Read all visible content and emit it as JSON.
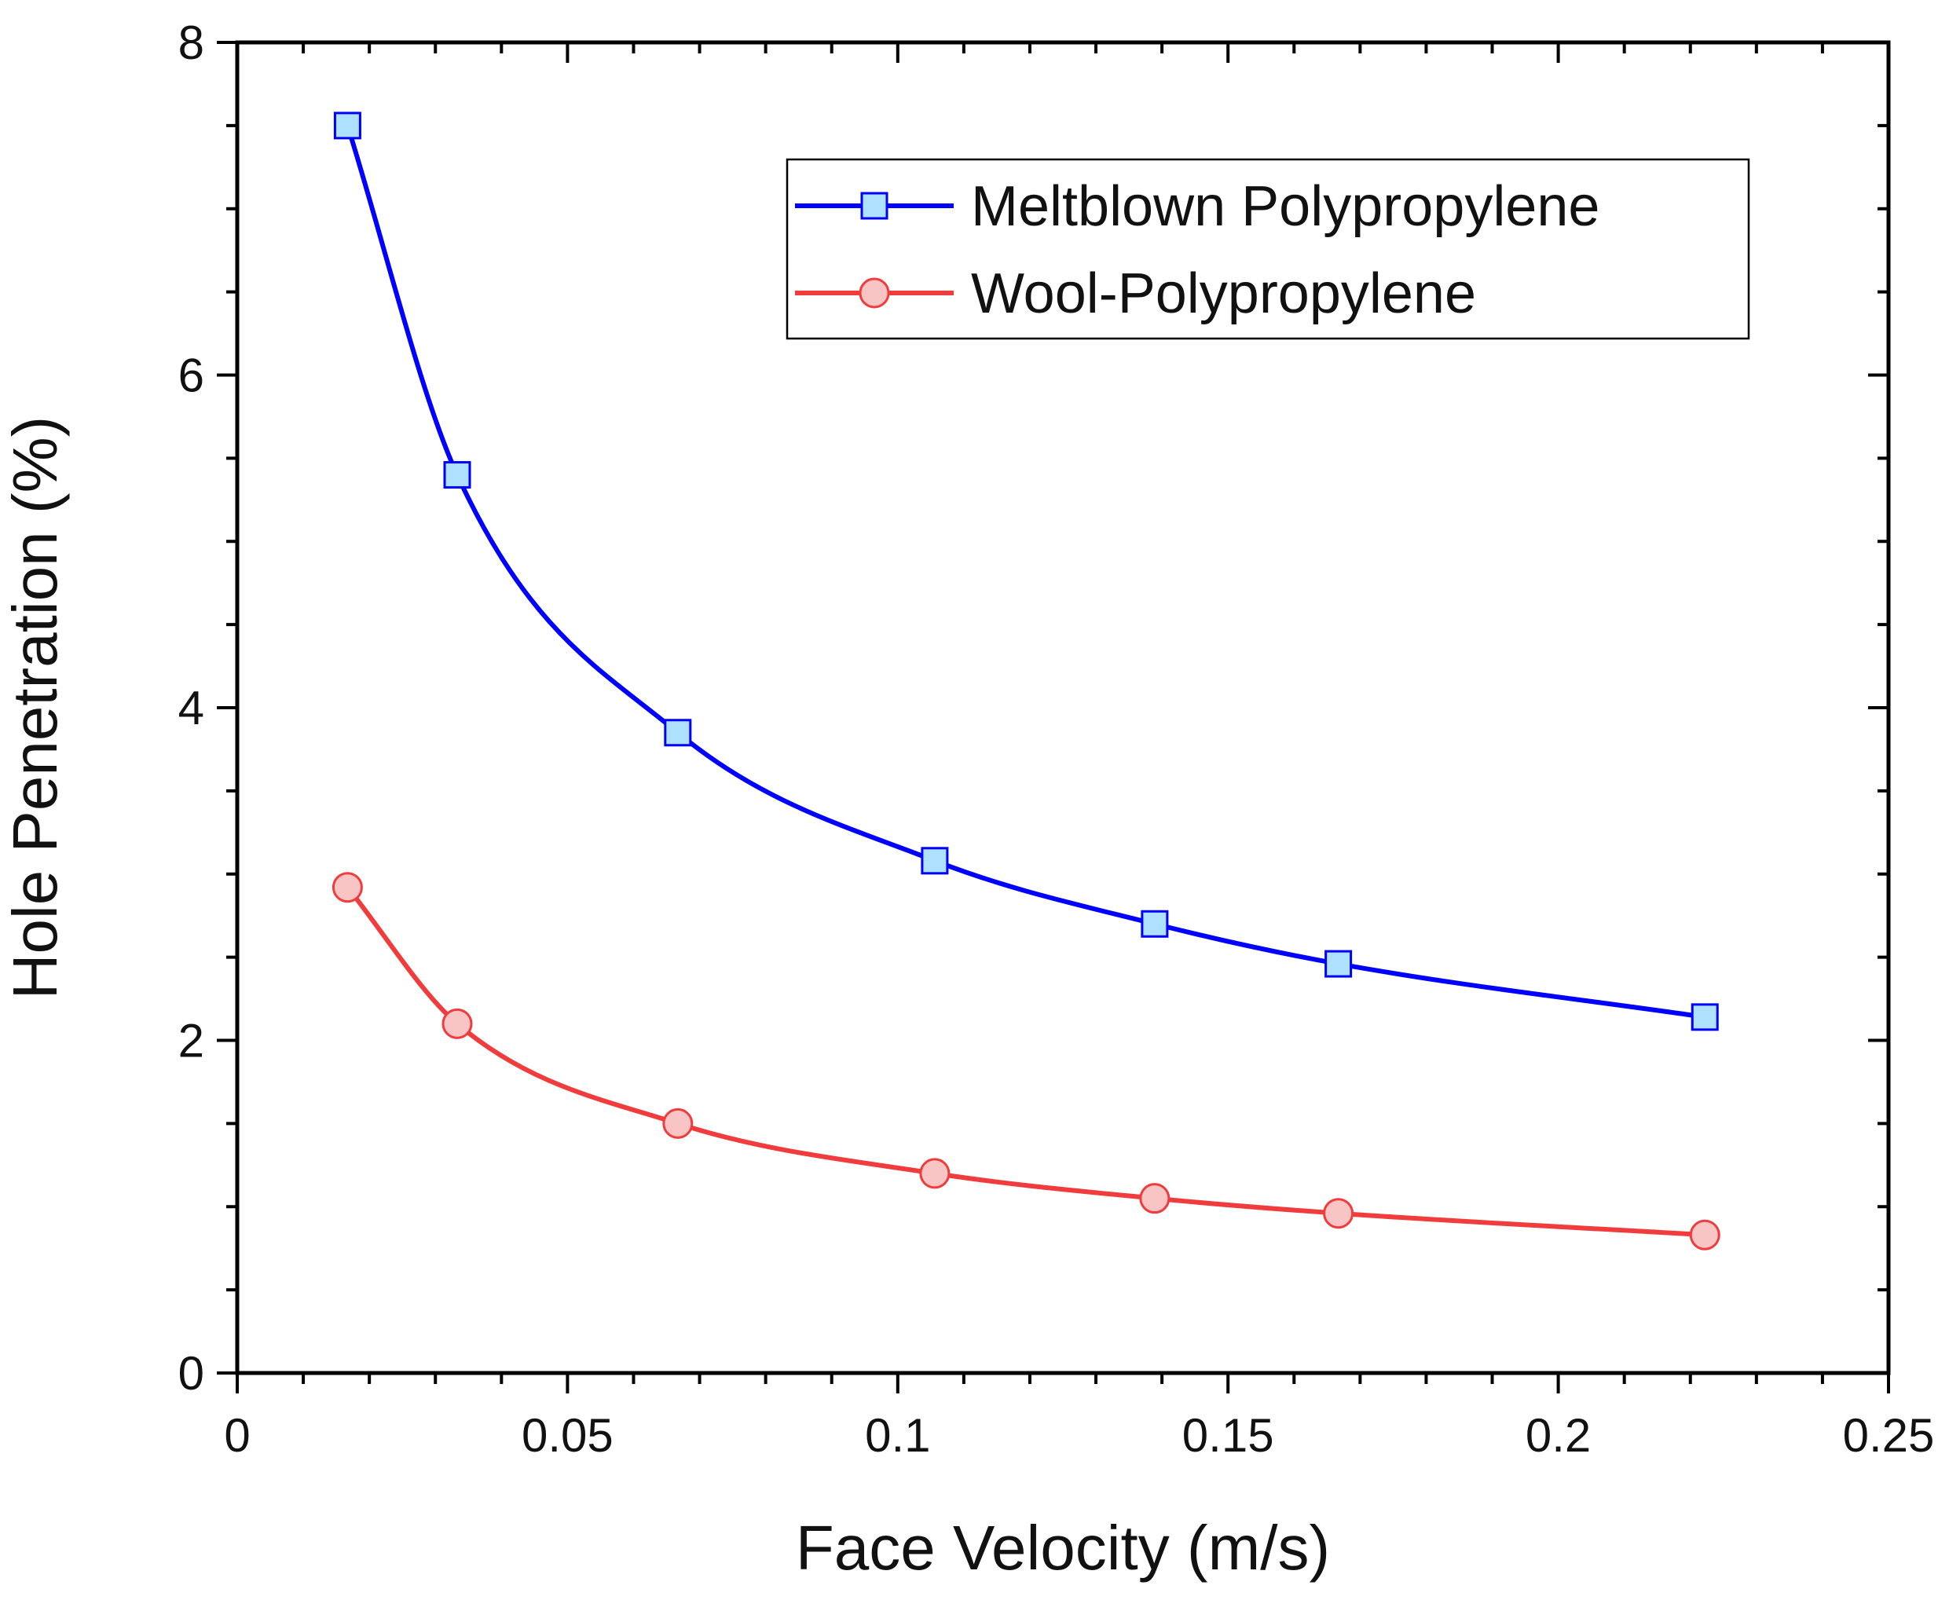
{
  "chart_data": {
    "type": "line",
    "title": "",
    "xlabel": "Face Velocity (m/s)",
    "ylabel": "Hole Penetration (%)",
    "xlim": [
      0,
      0.25
    ],
    "ylim": [
      0,
      8
    ],
    "xticks": [
      0,
      0.05,
      0.1,
      0.15,
      0.2,
      0.25
    ],
    "xtick_labels": [
      "0",
      "0.05",
      "0.1",
      "0.15",
      "0.2",
      "0.25"
    ],
    "yticks": [
      0,
      2,
      4,
      6,
      8
    ],
    "ytick_labels": [
      "0",
      "2",
      "4",
      "6",
      "8"
    ],
    "x_minor_step": 0.01,
    "y_minor_step": 0.5,
    "grid": false,
    "legend_position": "top-right",
    "series": [
      {
        "name": "Meltblown Polypropylene",
        "marker": "square",
        "line_color": "#0000ff",
        "marker_fill": "#aee0ff",
        "x": [
          0.0167,
          0.0333,
          0.0667,
          0.1056,
          0.1389,
          0.1667,
          0.2222
        ],
        "values": [
          7.5,
          5.4,
          3.85,
          3.08,
          2.7,
          2.46,
          2.14
        ]
      },
      {
        "name": "Wool-Polypropylene",
        "marker": "circle",
        "line_color": "#f03c3c",
        "marker_fill": "#f8c4c4",
        "x": [
          0.0167,
          0.0333,
          0.0667,
          0.1056,
          0.1389,
          0.1667,
          0.2222
        ],
        "values": [
          2.92,
          2.1,
          1.5,
          1.2,
          1.05,
          0.96,
          0.83
        ]
      }
    ]
  }
}
